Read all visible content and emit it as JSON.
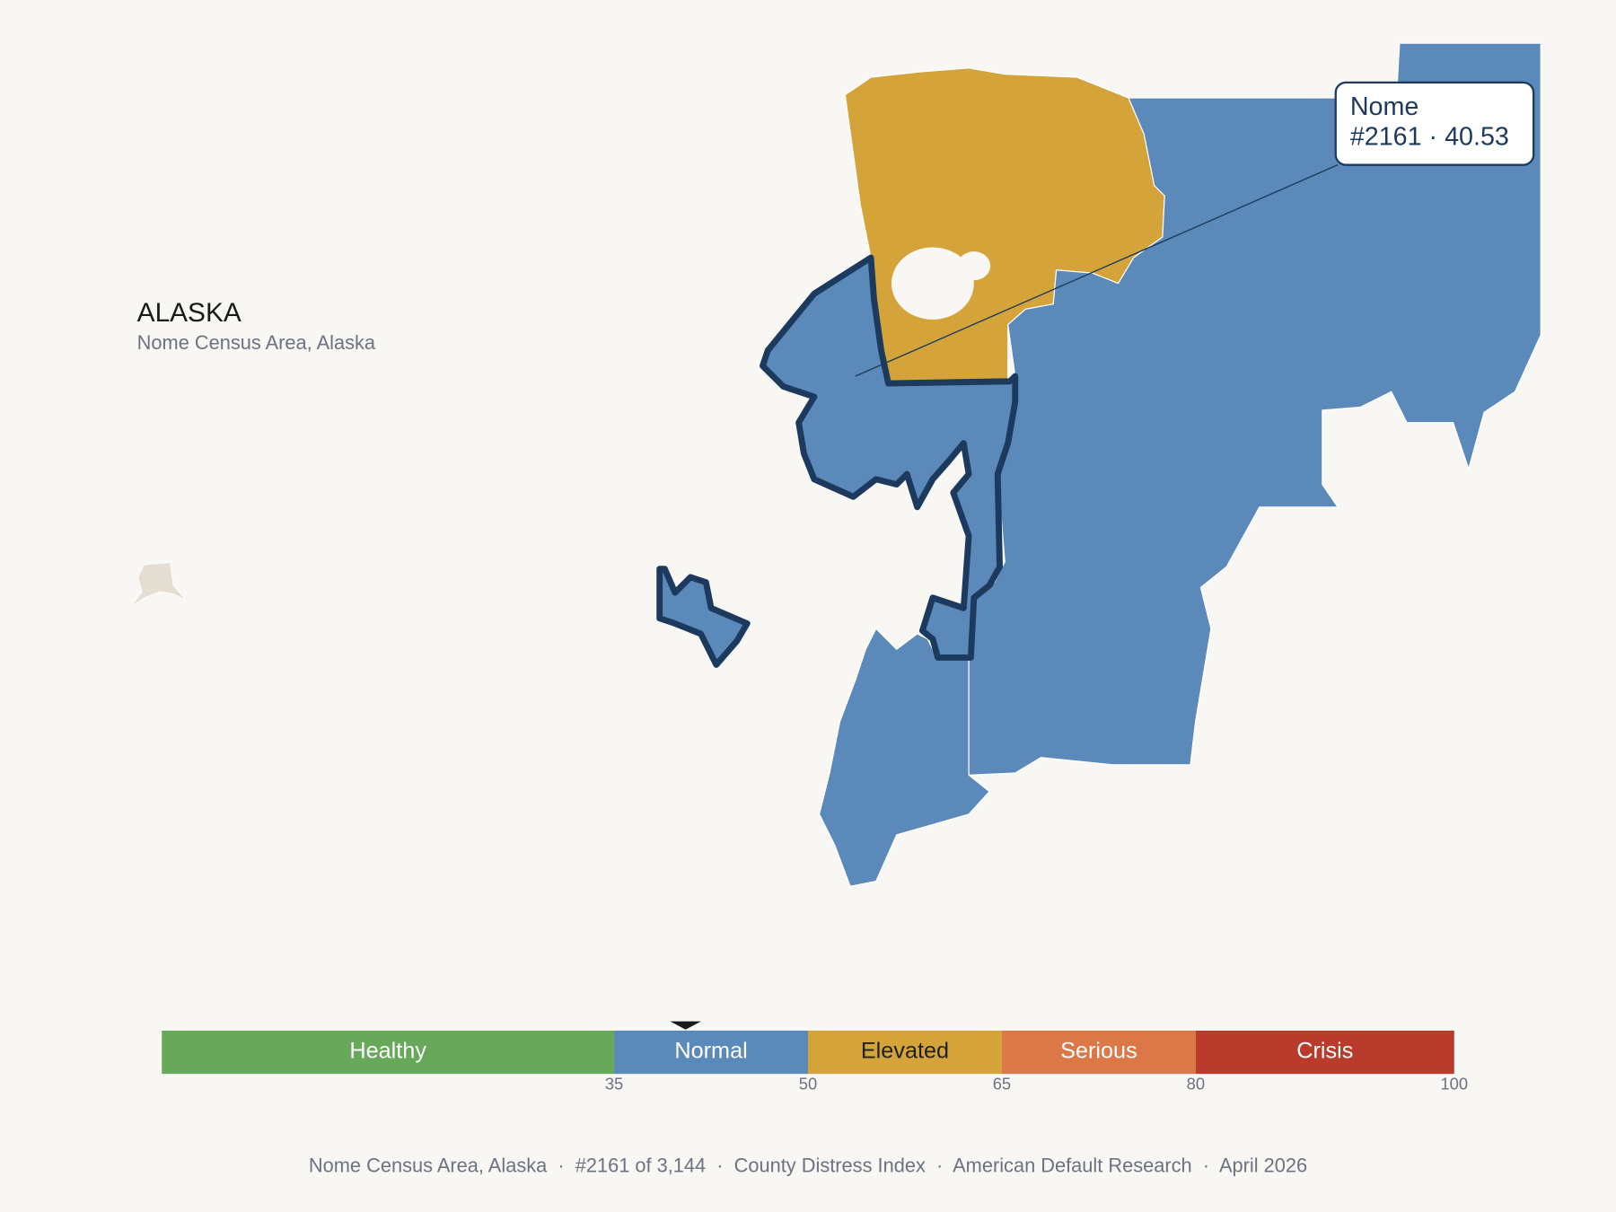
{
  "header": {
    "title": "ALASKA",
    "subtitle": "Nome Census Area, Alaska"
  },
  "tooltip": {
    "name": "Nome",
    "detail": "#2161 · 40.53",
    "score": 40.53
  },
  "scale": {
    "lim": [
      0,
      100
    ],
    "ticks": [
      35,
      50,
      65,
      80,
      100
    ],
    "segments": [
      {
        "label": "Healthy",
        "end": 35,
        "color": "#67a85a",
        "text_color": "#ffffff"
      },
      {
        "label": "Normal",
        "end": 50,
        "color": "#5b89b9",
        "text_color": "#ffffff"
      },
      {
        "label": "Elevated",
        "end": 65,
        "color": "#d4a43b",
        "text_color": "#1f1f1f"
      },
      {
        "label": "Serious",
        "end": 80,
        "color": "#dc7748",
        "text_color": "#ffffff"
      },
      {
        "label": "Crisis",
        "end": 100,
        "color": "#b93b2c",
        "text_color": "#ffffff"
      }
    ]
  },
  "footer": "Nome Census Area, Alaska  ·  #2161 of 3,144  ·  County Distress Index  ·  American Default Research  ·  April 2026"
}
